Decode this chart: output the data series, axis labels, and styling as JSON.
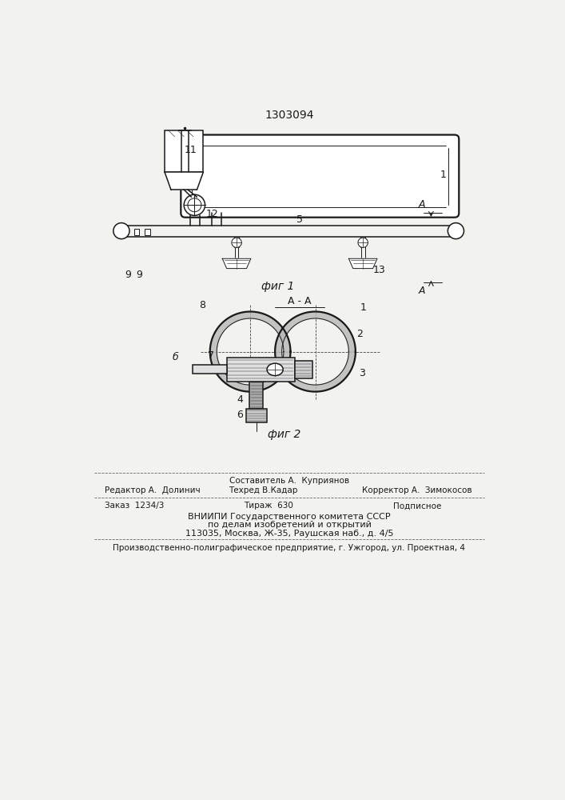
{
  "patent_number": "1303094",
  "fig1_caption": "фиг 1",
  "fig2_caption": "фиг 2",
  "section_label": "А - А",
  "bg_color": "#f2f2ee",
  "line_color": "#1a1a1a",
  "editor_line": "Редактор А.  Долинич",
  "composer_line": "Составитель А.  Куприянов",
  "techred_line": "Техред В.Кадар",
  "corrector_line": "Корректор А.  Зимокосов",
  "order_line": "Заказ  1234/3",
  "tirazh_line": "Тираж  630",
  "podpisnoe_line": "Подписное",
  "vniip1": "ВНИИПИ Государственного комитета СССР",
  "vniip2": "по делам изобретений и открытий",
  "vniip3": "113035, Москва, Ж-35, Раушская наб., д. 4/5",
  "prod_line": "Производственно-полиграфическое предприятие, г. Ужгород, ул. Проектная, 4"
}
